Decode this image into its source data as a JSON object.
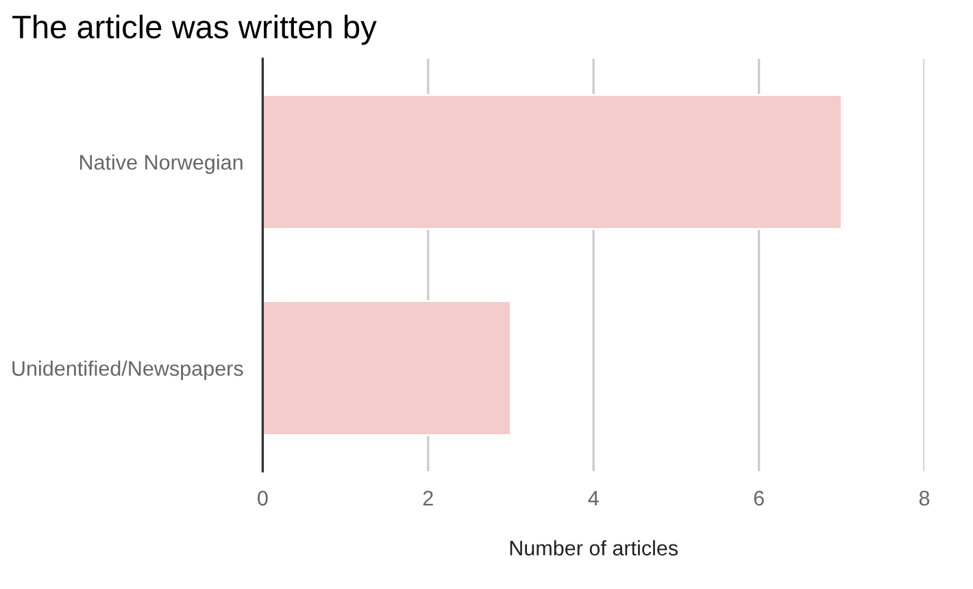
{
  "chart_data": {
    "type": "bar",
    "orientation": "horizontal",
    "title": "The article was written by",
    "xlabel": "Number of articles",
    "categories": [
      "Native Norwegian",
      "Unidentified/Newspapers"
    ],
    "values": [
      7,
      3
    ],
    "color": "#f4cccc",
    "xlim": [
      0,
      8
    ],
    "xticks": [
      0,
      2,
      4,
      6,
      8
    ],
    "grid": "x"
  }
}
